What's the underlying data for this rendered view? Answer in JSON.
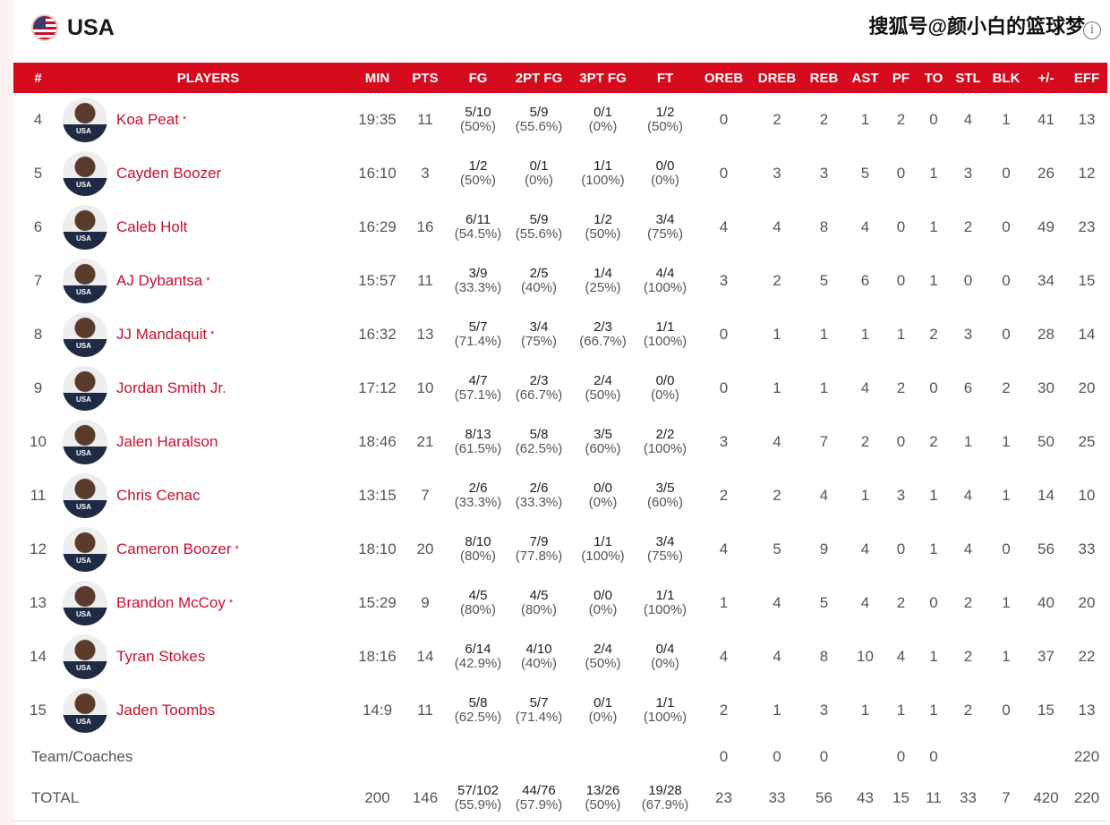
{
  "header": {
    "team": "USA",
    "watermark": "搜狐号@颜小白的篮球梦",
    "info_icon": "info-icon",
    "flag_icon": "us-flag-icon"
  },
  "colors": {
    "header_bg": "#d50a1c",
    "name": "#c8102e"
  },
  "columns": [
    "#",
    "PLAYERS",
    "MIN",
    "PTS",
    "FG",
    "2PT FG",
    "3PT FG",
    "FT",
    "OREB",
    "DREB",
    "REB",
    "AST",
    "PF",
    "TO",
    "STL",
    "BLK",
    "+/-",
    "EFF"
  ],
  "players": [
    {
      "num": "4",
      "name": "Koa Peat",
      "starter": "*",
      "min": "19:35",
      "pts": "11",
      "fg": "5/10",
      "fg_p": "(50%)",
      "p2": "5/9",
      "p2_p": "(55.6%)",
      "p3": "0/1",
      "p3_p": "(0%)",
      "ft": "1/2",
      "ft_p": "(50%)",
      "oreb": "0",
      "dreb": "2",
      "reb": "2",
      "ast": "1",
      "pf": "2",
      "to": "0",
      "stl": "4",
      "blk": "1",
      "pm": "41",
      "eff": "13"
    },
    {
      "num": "5",
      "name": "Cayden Boozer",
      "starter": "",
      "min": "16:10",
      "pts": "3",
      "fg": "1/2",
      "fg_p": "(50%)",
      "p2": "0/1",
      "p2_p": "(0%)",
      "p3": "1/1",
      "p3_p": "(100%)",
      "ft": "0/0",
      "ft_p": "(0%)",
      "oreb": "0",
      "dreb": "3",
      "reb": "3",
      "ast": "5",
      "pf": "0",
      "to": "1",
      "stl": "3",
      "blk": "0",
      "pm": "26",
      "eff": "12"
    },
    {
      "num": "6",
      "name": "Caleb Holt",
      "starter": "",
      "min": "16:29",
      "pts": "16",
      "fg": "6/11",
      "fg_p": "(54.5%)",
      "p2": "5/9",
      "p2_p": "(55.6%)",
      "p3": "1/2",
      "p3_p": "(50%)",
      "ft": "3/4",
      "ft_p": "(75%)",
      "oreb": "4",
      "dreb": "4",
      "reb": "8",
      "ast": "4",
      "pf": "0",
      "to": "1",
      "stl": "2",
      "blk": "0",
      "pm": "49",
      "eff": "23"
    },
    {
      "num": "7",
      "name": "AJ Dybantsa",
      "starter": "*",
      "min": "15:57",
      "pts": "11",
      "fg": "3/9",
      "fg_p": "(33.3%)",
      "p2": "2/5",
      "p2_p": "(40%)",
      "p3": "1/4",
      "p3_p": "(25%)",
      "ft": "4/4",
      "ft_p": "(100%)",
      "oreb": "3",
      "dreb": "2",
      "reb": "5",
      "ast": "6",
      "pf": "0",
      "to": "1",
      "stl": "0",
      "blk": "0",
      "pm": "34",
      "eff": "15"
    },
    {
      "num": "8",
      "name": "JJ Mandaquit",
      "starter": "*",
      "min": "16:32",
      "pts": "13",
      "fg": "5/7",
      "fg_p": "(71.4%)",
      "p2": "3/4",
      "p2_p": "(75%)",
      "p3": "2/3",
      "p3_p": "(66.7%)",
      "ft": "1/1",
      "ft_p": "(100%)",
      "oreb": "0",
      "dreb": "1",
      "reb": "1",
      "ast": "1",
      "pf": "1",
      "to": "2",
      "stl": "3",
      "blk": "0",
      "pm": "28",
      "eff": "14"
    },
    {
      "num": "9",
      "name": "Jordan Smith Jr.",
      "starter": "",
      "min": "17:12",
      "pts": "10",
      "fg": "4/7",
      "fg_p": "(57.1%)",
      "p2": "2/3",
      "p2_p": "(66.7%)",
      "p3": "2/4",
      "p3_p": "(50%)",
      "ft": "0/0",
      "ft_p": "(0%)",
      "oreb": "0",
      "dreb": "1",
      "reb": "1",
      "ast": "4",
      "pf": "2",
      "to": "0",
      "stl": "6",
      "blk": "2",
      "pm": "30",
      "eff": "20"
    },
    {
      "num": "10",
      "name": "Jalen Haralson",
      "starter": "",
      "min": "18:46",
      "pts": "21",
      "fg": "8/13",
      "fg_p": "(61.5%)",
      "p2": "5/8",
      "p2_p": "(62.5%)",
      "p3": "3/5",
      "p3_p": "(60%)",
      "ft": "2/2",
      "ft_p": "(100%)",
      "oreb": "3",
      "dreb": "4",
      "reb": "7",
      "ast": "2",
      "pf": "0",
      "to": "2",
      "stl": "1",
      "blk": "1",
      "pm": "50",
      "eff": "25"
    },
    {
      "num": "11",
      "name": "Chris Cenac",
      "starter": "",
      "min": "13:15",
      "pts": "7",
      "fg": "2/6",
      "fg_p": "(33.3%)",
      "p2": "2/6",
      "p2_p": "(33.3%)",
      "p3": "0/0",
      "p3_p": "(0%)",
      "ft": "3/5",
      "ft_p": "(60%)",
      "oreb": "2",
      "dreb": "2",
      "reb": "4",
      "ast": "1",
      "pf": "3",
      "to": "1",
      "stl": "4",
      "blk": "1",
      "pm": "14",
      "eff": "10"
    },
    {
      "num": "12",
      "name": "Cameron Boozer",
      "starter": "*",
      "min": "18:10",
      "pts": "20",
      "fg": "8/10",
      "fg_p": "(80%)",
      "p2": "7/9",
      "p2_p": "(77.8%)",
      "p3": "1/1",
      "p3_p": "(100%)",
      "ft": "3/4",
      "ft_p": "(75%)",
      "oreb": "4",
      "dreb": "5",
      "reb": "9",
      "ast": "4",
      "pf": "0",
      "to": "1",
      "stl": "4",
      "blk": "0",
      "pm": "56",
      "eff": "33"
    },
    {
      "num": "13",
      "name": "Brandon McCoy",
      "starter": "*",
      "min": "15:29",
      "pts": "9",
      "fg": "4/5",
      "fg_p": "(80%)",
      "p2": "4/5",
      "p2_p": "(80%)",
      "p3": "0/0",
      "p3_p": "(0%)",
      "ft": "1/1",
      "ft_p": "(100%)",
      "oreb": "1",
      "dreb": "4",
      "reb": "5",
      "ast": "4",
      "pf": "2",
      "to": "0",
      "stl": "2",
      "blk": "1",
      "pm": "40",
      "eff": "20"
    },
    {
      "num": "14",
      "name": "Tyran Stokes",
      "starter": "",
      "min": "18:16",
      "pts": "14",
      "fg": "6/14",
      "fg_p": "(42.9%)",
      "p2": "4/10",
      "p2_p": "(40%)",
      "p3": "2/4",
      "p3_p": "(50%)",
      "ft": "0/4",
      "ft_p": "(0%)",
      "oreb": "4",
      "dreb": "4",
      "reb": "8",
      "ast": "10",
      "pf": "4",
      "to": "1",
      "stl": "2",
      "blk": "1",
      "pm": "37",
      "eff": "22"
    },
    {
      "num": "15",
      "name": "Jaden Toombs",
      "starter": "",
      "min": "14:9",
      "pts": "11",
      "fg": "5/8",
      "fg_p": "(62.5%)",
      "p2": "5/7",
      "p2_p": "(71.4%)",
      "p3": "0/1",
      "p3_p": "(0%)",
      "ft": "1/1",
      "ft_p": "(100%)",
      "oreb": "2",
      "dreb": "1",
      "reb": "3",
      "ast": "1",
      "pf": "1",
      "to": "1",
      "stl": "2",
      "blk": "0",
      "pm": "15",
      "eff": "13"
    }
  ],
  "team_row": {
    "label": "Team/Coaches",
    "min": "",
    "pts": "",
    "fg": "",
    "fg_p": "",
    "p2": "",
    "p2_p": "",
    "p3": "",
    "p3_p": "",
    "ft": "",
    "ft_p": "",
    "oreb": "0",
    "dreb": "0",
    "reb": "0",
    "ast": "",
    "pf": "0",
    "to": "0",
    "stl": "",
    "blk": "",
    "pm": "",
    "eff": "220"
  },
  "total_row": {
    "label": "TOTAL",
    "min": "200",
    "pts": "146",
    "fg": "57/102",
    "fg_p": "(55.9%)",
    "p2": "44/76",
    "p2_p": "(57.9%)",
    "p3": "13/26",
    "p3_p": "(50%)",
    "ft": "19/28",
    "ft_p": "(67.9%)",
    "oreb": "23",
    "dreb": "33",
    "reb": "56",
    "ast": "43",
    "pf": "15",
    "to": "11",
    "stl": "33",
    "blk": "7",
    "pm": "420",
    "eff": "220"
  },
  "photo_badge": "USA"
}
